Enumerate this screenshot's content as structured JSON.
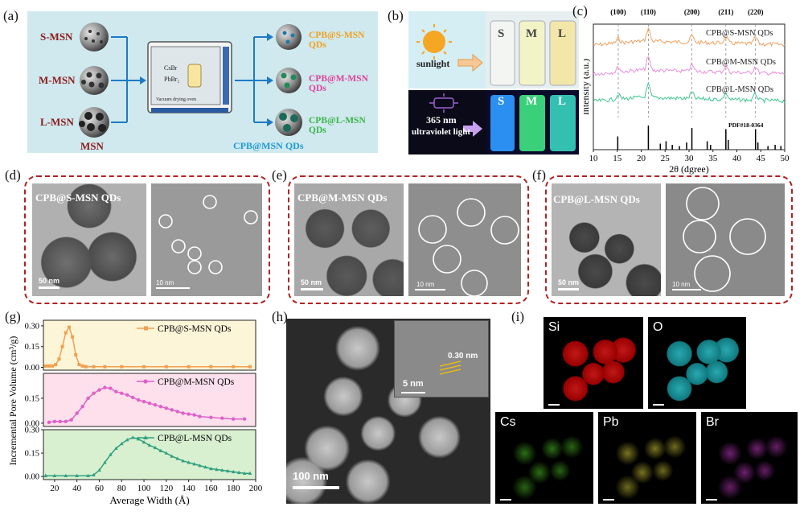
{
  "panels": {
    "a": {
      "label": "(a)",
      "msn_labels": [
        "S-MSN",
        "M-MSN",
        "L-MSN"
      ],
      "msn_title": "MSN",
      "oven_text_1": "CsBr",
      "oven_text_2": "PbBr₂",
      "oven_caption": "Vacuum drying oven",
      "product_labels": [
        "CPB@S-MSN QDs",
        "CPB@M-MSN QDs",
        "CPB@L-MSN QDs"
      ],
      "product_title": "CPB@MSN QDs",
      "colors": {
        "s": "#f0a020",
        "m": "#e0409a",
        "l": "#3cb44a",
        "msn": "#8b1a1a",
        "title": "#1e9ad6",
        "bg": "#cfe9ee"
      }
    },
    "b": {
      "label": "(b)",
      "sunlight": "sunlight",
      "uv_line1": "365 nm",
      "uv_line2": "ultraviolet light",
      "vials": [
        "S",
        "M",
        "L"
      ]
    },
    "c": {
      "label": "(c)",
      "planes": [
        "(100)",
        "(110)",
        "(200)",
        "(211)",
        "(220)"
      ],
      "series": [
        "CPB@S-MSN QDs",
        "CPB@M-MSN QDs",
        "CPB@L-MSN QDs"
      ],
      "pdf": "PDF#18-0364",
      "ylabel": "Intensity (a.u.)",
      "xlabel": "2θ (dgree)",
      "xticks": [
        "10",
        "15",
        "20",
        "25",
        "30",
        "35",
        "40",
        "45",
        "50"
      ]
    },
    "d": {
      "label": "(d)",
      "title": "CPB@S-MSN QDs",
      "scale1": "50 nm",
      "scale2": "10 nm"
    },
    "e": {
      "label": "(e)",
      "title": "CPB@M-MSN QDs",
      "scale1": "50 nm",
      "scale2": "10 nm"
    },
    "f": {
      "label": "(f)",
      "title": "CPB@L-MSN QDs",
      "scale1": "50 nm",
      "scale2": "10 nm"
    },
    "g": {
      "label": "(g)",
      "ylabel": "Incremental Pore Volume (cm³/g)",
      "xlabel": "Average Width (Å)"
    },
    "h": {
      "label": "(h)",
      "lattice": "0.30 nm",
      "inset_scale": "5 nm",
      "scale": "100 nm"
    },
    "i": {
      "label": "(i)",
      "elements": [
        "Si",
        "O",
        "Cs",
        "Pb",
        "Br"
      ]
    }
  },
  "chart_data": [
    {
      "type": "line",
      "panel": "c",
      "title": "",
      "xlabel": "2θ (dgree)",
      "ylabel": "Intensity (a.u.)",
      "xlim": [
        10,
        50
      ],
      "series": [
        {
          "name": "CPB@S-MSN QDs",
          "color": "#f0a060",
          "peaks": [
            15.2,
            21.5,
            30.6,
            37.7,
            43.9
          ]
        },
        {
          "name": "CPB@M-MSN QDs",
          "color": "#e890e0",
          "peaks": [
            15.2,
            21.5,
            30.6,
            37.7,
            43.9
          ]
        },
        {
          "name": "CPB@L-MSN QDs",
          "color": "#40c890",
          "peaks": [
            15.2,
            21.5,
            30.6,
            37.7,
            43.9
          ]
        }
      ],
      "reference_name": "PDF#18-0364",
      "reference_peaks": [
        {
          "x": 15.1,
          "h": 0.55
        },
        {
          "x": 21.5,
          "h": 1.0
        },
        {
          "x": 24.0,
          "h": 0.25
        },
        {
          "x": 25.2,
          "h": 0.35
        },
        {
          "x": 26.5,
          "h": 0.2
        },
        {
          "x": 28.0,
          "h": 0.15
        },
        {
          "x": 29.5,
          "h": 0.3
        },
        {
          "x": 30.6,
          "h": 0.9
        },
        {
          "x": 33.8,
          "h": 0.35
        },
        {
          "x": 34.5,
          "h": 0.2
        },
        {
          "x": 37.7,
          "h": 0.85
        },
        {
          "x": 38.2,
          "h": 0.4
        },
        {
          "x": 43.9,
          "h": 0.85
        },
        {
          "x": 44.4,
          "h": 0.3
        },
        {
          "x": 46.5,
          "h": 0.15
        },
        {
          "x": 48.0,
          "h": 0.2
        },
        {
          "x": 49.2,
          "h": 0.15
        }
      ]
    },
    {
      "type": "line",
      "panel": "g",
      "title": "",
      "xlabel": "Average Width (Å)",
      "ylabel": "Incremental Pore Volume (cm³/g)",
      "xlim": [
        10,
        200
      ],
      "xticks": [
        20,
        40,
        60,
        80,
        100,
        120,
        140,
        160,
        180,
        200
      ],
      "series": [
        {
          "name": "CPB@S-MSN QDs",
          "color": "#f0a050",
          "bg": "#fdf5d8",
          "ylim": [
            -0.02,
            0.34
          ],
          "yticks": [
            0.0,
            0.15,
            0.3
          ],
          "ytick_labels": [
            "0.00",
            "0.15",
            "0.30"
          ],
          "marker": "square",
          "x": [
            12,
            15,
            18,
            21,
            24,
            27,
            30,
            33,
            36,
            39,
            42,
            45,
            48,
            55,
            65,
            80,
            100,
            120,
            140,
            160,
            180,
            195
          ],
          "y": [
            0.01,
            0.01,
            0.01,
            0.02,
            0.06,
            0.15,
            0.25,
            0.29,
            0.22,
            0.09,
            0.02,
            0.01,
            0.005,
            0.005,
            0.005,
            0.005,
            0.005,
            0.005,
            0.005,
            0.005,
            0.005,
            0.005
          ]
        },
        {
          "name": "CPB@M-MSN QDs",
          "color": "#e060c8",
          "bg": "#fde0ec",
          "ylim": [
            -0.02,
            0.3
          ],
          "yticks": [
            0.0,
            0.15
          ],
          "ytick_labels": [
            "0.00",
            "0.15"
          ],
          "marker": "circle",
          "x": [
            15,
            20,
            25,
            30,
            35,
            40,
            45,
            50,
            55,
            60,
            65,
            70,
            75,
            80,
            85,
            90,
            95,
            100,
            105,
            110,
            115,
            120,
            125,
            130,
            135,
            140,
            145,
            150,
            160,
            170,
            180,
            190
          ],
          "y": [
            0.005,
            0.01,
            0.01,
            0.01,
            0.02,
            0.06,
            0.1,
            0.15,
            0.18,
            0.2,
            0.215,
            0.21,
            0.19,
            0.18,
            0.17,
            0.155,
            0.14,
            0.13,
            0.12,
            0.11,
            0.1,
            0.09,
            0.08,
            0.07,
            0.06,
            0.055,
            0.05,
            0.04,
            0.035,
            0.03,
            0.025,
            0.025
          ]
        },
        {
          "name": "CPB@L-MSN QDs",
          "color": "#30a080",
          "bg": "#d8f0d0",
          "ylim": [
            -0.02,
            0.3
          ],
          "yticks": [
            0.0,
            0.15,
            0.3
          ],
          "ytick_labels": [
            "0.00",
            "0.15",
            "0.30"
          ],
          "marker": "triangle",
          "x": [
            12,
            20,
            30,
            40,
            50,
            55,
            60,
            65,
            70,
            75,
            80,
            85,
            90,
            95,
            100,
            105,
            110,
            115,
            120,
            125,
            130,
            135,
            140,
            145,
            150,
            155,
            160,
            165,
            170,
            175,
            180,
            185,
            190,
            195
          ],
          "y": [
            0.005,
            0.005,
            0.005,
            0.005,
            0.005,
            0.01,
            0.04,
            0.09,
            0.14,
            0.18,
            0.21,
            0.235,
            0.25,
            0.24,
            0.22,
            0.2,
            0.185,
            0.165,
            0.15,
            0.13,
            0.115,
            0.1,
            0.09,
            0.08,
            0.07,
            0.06,
            0.05,
            0.045,
            0.04,
            0.035,
            0.03,
            0.025,
            0.02,
            0.02
          ]
        }
      ]
    }
  ]
}
